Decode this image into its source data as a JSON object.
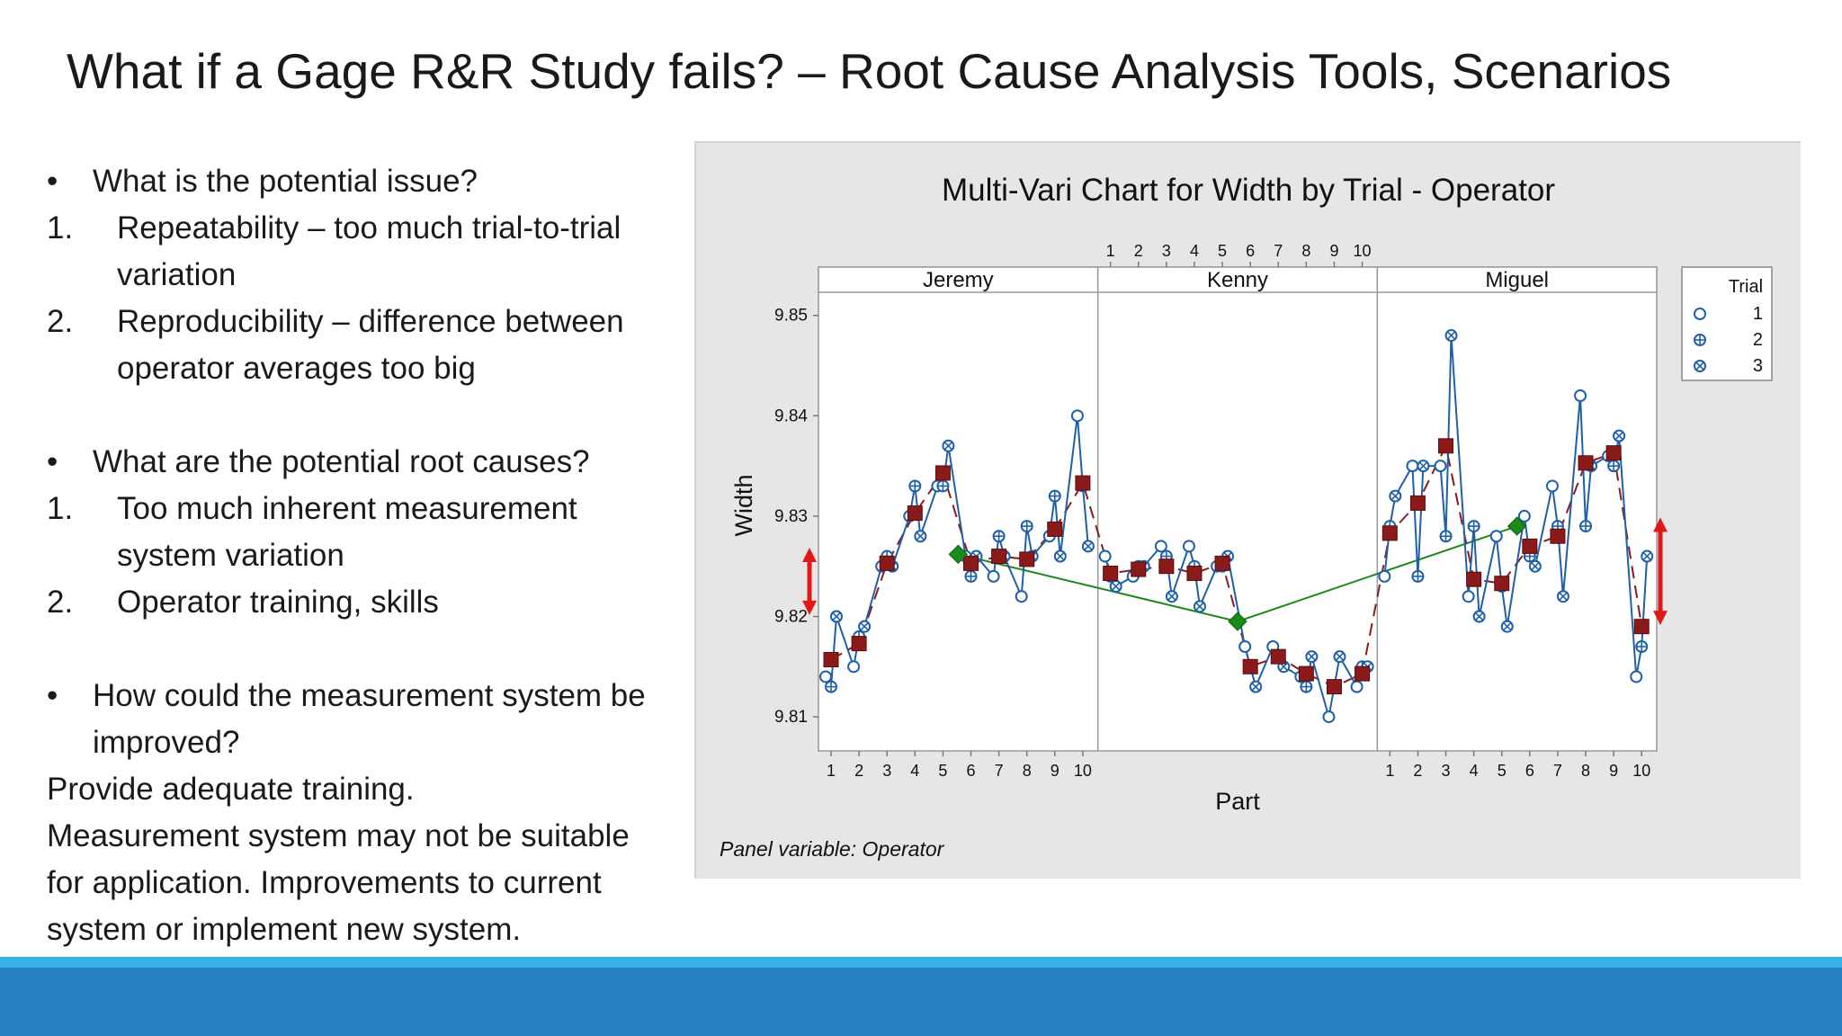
{
  "slide": {
    "title": "What if a Gage R&R Study fails? – Root Cause Analysis Tools, Scenarios",
    "bullet_mark": "•",
    "issue_question": "What is the potential issue?",
    "issue_1_num": "1.",
    "issue_1_line1": "Repeatability – too much trial-to-trial",
    "issue_1_line2": "variation",
    "issue_2_num": "2.",
    "issue_2_line1": "Reproducibility – difference between",
    "issue_2_line2": "operator averages too big",
    "cause_question": "What are the potential root causes?",
    "cause_1_num": "1.",
    "cause_1_line1": "Too much inherent measurement",
    "cause_1_line2": "system variation",
    "cause_2_num": "2.",
    "cause_2_line1": "Operator training, skills",
    "improve_question_line1": "How could the measurement system be",
    "improve_question_line2": "improved?",
    "answer_line1": "Provide adequate training.",
    "answer_line2": "Measurement system may not be suitable",
    "answer_line3": "for application. Improvements to current",
    "answer_line4": "system or implement new system."
  },
  "colors": {
    "footer_light": "#36b1e6",
    "footer_dark": "#2680c2",
    "trial_points": "#1f5fa8",
    "part_means": "#8b1a1a",
    "operator_means": "#1a8a1a",
    "arrows": "#e01818"
  },
  "chart_data": {
    "type": "line",
    "title": "Multi-Vari Chart for Width by Trial - Operator",
    "xlabel": "Part",
    "ylabel": "Width",
    "footnote": "Panel variable: Operator",
    "ylim": [
      9.8075,
      9.8515
    ],
    "yticks": [
      9.81,
      9.82,
      9.83,
      9.84,
      9.85
    ],
    "ytick_labels": [
      "9.81",
      "9.82",
      "9.83",
      "9.84",
      "9.85"
    ],
    "parts": [
      "1",
      "2",
      "3",
      "4",
      "5",
      "6",
      "7",
      "8",
      "9",
      "10"
    ],
    "legend": {
      "title": "Trial",
      "entries": [
        "1",
        "2",
        "3"
      ],
      "position": "right"
    },
    "panels": [
      {
        "operator": "Jeremy",
        "operator_mean": 9.8262,
        "trials": [
          [
            9.814,
            9.815,
            9.825,
            9.83,
            9.833,
            9.826,
            9.824,
            9.822,
            9.828,
            9.84
          ],
          [
            9.813,
            9.818,
            9.826,
            9.833,
            9.833,
            9.824,
            9.828,
            9.829,
            9.832,
            9.833
          ],
          [
            9.82,
            9.819,
            9.825,
            9.828,
            9.837,
            9.826,
            9.826,
            9.826,
            9.826,
            9.827
          ]
        ],
        "part_means": [
          9.8157,
          9.8173,
          9.8253,
          9.8303,
          9.8343,
          9.8253,
          9.826,
          9.8257,
          9.8287,
          9.8333
        ]
      },
      {
        "operator": "Kenny",
        "operator_mean": 9.8195,
        "trials": [
          [
            9.826,
            9.824,
            9.827,
            9.827,
            9.825,
            9.817,
            9.817,
            9.814,
            9.81,
            9.813
          ],
          [
            9.824,
            9.825,
            9.826,
            9.825,
            9.825,
            9.815,
            9.816,
            9.813,
            9.813,
            9.815
          ],
          [
            9.823,
            9.825,
            9.822,
            9.821,
            9.826,
            9.813,
            9.815,
            9.816,
            9.816,
            9.815
          ]
        ],
        "part_means": [
          9.8243,
          9.8247,
          9.825,
          9.8243,
          9.8253,
          9.815,
          9.816,
          9.8143,
          9.813,
          9.8143
        ]
      },
      {
        "operator": "Miguel",
        "operator_mean": 9.829,
        "trials": [
          [
            9.824,
            9.835,
            9.835,
            9.822,
            9.828,
            9.83,
            9.833,
            9.842,
            9.836,
            9.814
          ],
          [
            9.829,
            9.824,
            9.828,
            9.829,
            9.823,
            9.826,
            9.829,
            9.829,
            9.835,
            9.817
          ],
          [
            9.832,
            9.835,
            9.848,
            9.82,
            9.819,
            9.825,
            9.822,
            9.835,
            9.838,
            9.826
          ]
        ],
        "part_means": [
          9.8283,
          9.8313,
          9.837,
          9.8237,
          9.8233,
          9.827,
          9.828,
          9.8353,
          9.8363,
          9.819
        ]
      }
    ],
    "annotations": [
      {
        "type": "double-arrow",
        "panel": "Jeremy",
        "side": "left",
        "from": 9.8205,
        "to": 9.8265
      },
      {
        "type": "double-arrow",
        "panel": "Miguel",
        "side": "right",
        "from": 9.8195,
        "to": 9.8295
      }
    ]
  }
}
